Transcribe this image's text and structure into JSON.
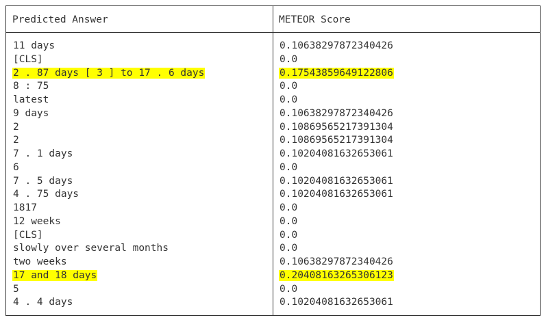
{
  "header": {
    "col1": "Predicted Answer",
    "col2": "METEOR Score"
  },
  "colors": {
    "highlight": "#ffff00",
    "text": "#333333",
    "border": "#333333"
  },
  "rows": [
    {
      "answer": "11 days",
      "score": "0.10638297872340426",
      "highlight": false
    },
    {
      "answer": "[CLS]",
      "score": "0.0",
      "highlight": false
    },
    {
      "answer": "2 . 87 days [ 3 ] to 17 . 6 days",
      "score": "0.17543859649122806",
      "highlight": true
    },
    {
      "answer": "8 : 75",
      "score": "0.0",
      "highlight": false
    },
    {
      "answer": "latest",
      "score": "0.0",
      "highlight": false
    },
    {
      "answer": "9 days",
      "score": "0.10638297872340426",
      "highlight": false
    },
    {
      "answer": "2",
      "score": "0.10869565217391304",
      "highlight": false
    },
    {
      "answer": "2",
      "score": "0.10869565217391304",
      "highlight": false
    },
    {
      "answer": "7 . 1 days",
      "score": "0.10204081632653061",
      "highlight": false
    },
    {
      "answer": "6",
      "score": "0.0",
      "highlight": false
    },
    {
      "answer": "7 . 5 days",
      "score": "0.10204081632653061",
      "highlight": false
    },
    {
      "answer": "4 . 75 days",
      "score": "0.10204081632653061",
      "highlight": false
    },
    {
      "answer": "1817",
      "score": "0.0",
      "highlight": false
    },
    {
      "answer": "12 weeks",
      "score": "0.0",
      "highlight": false
    },
    {
      "answer": "[CLS]",
      "score": "0.0",
      "highlight": false
    },
    {
      "answer": "slowly over several months",
      "score": "0.0",
      "highlight": false
    },
    {
      "answer": "two weeks",
      "score": "0.10638297872340426",
      "highlight": false
    },
    {
      "answer": "17 and 18 days",
      "score": "0.20408163265306123",
      "highlight": true
    },
    {
      "answer": "5",
      "score": "0.0",
      "highlight": false
    },
    {
      "answer": "4 . 4 days",
      "score": "0.10204081632653061",
      "highlight": false
    }
  ]
}
